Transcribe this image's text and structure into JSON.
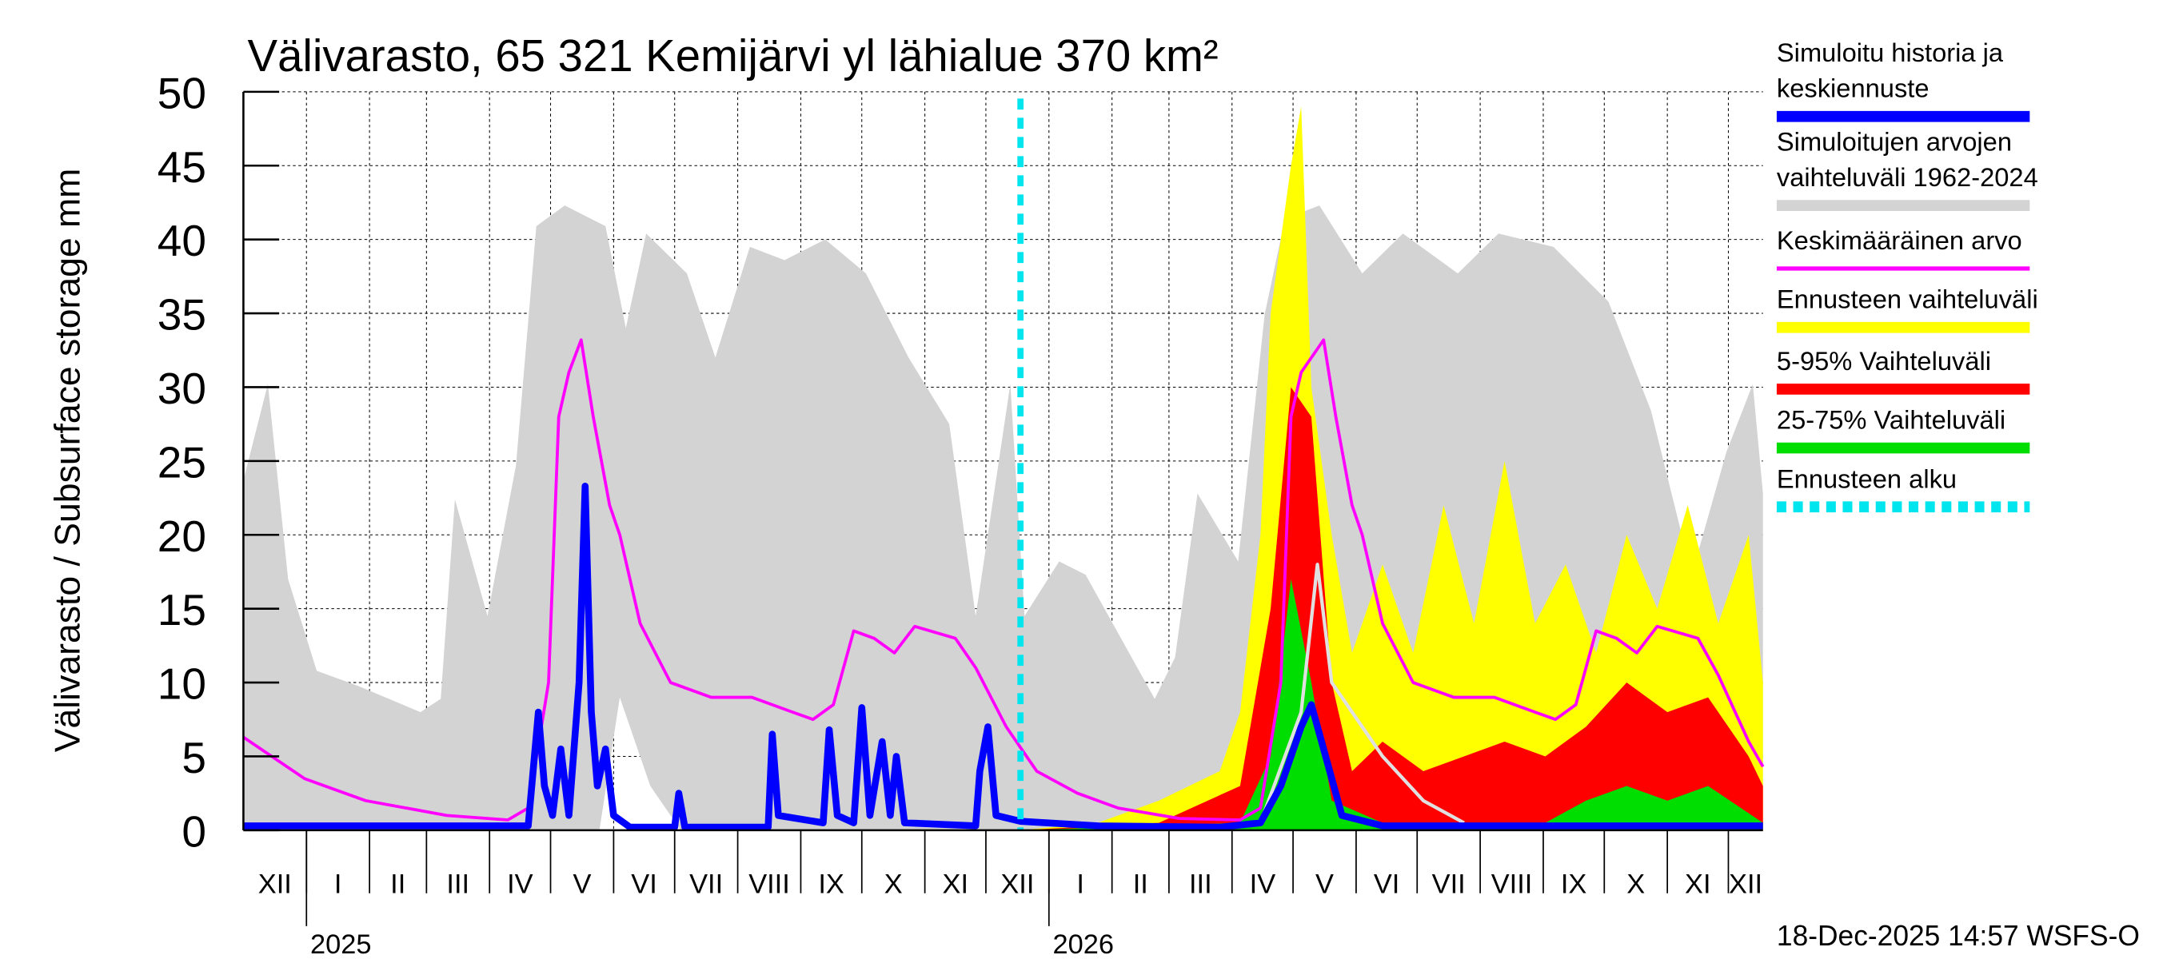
{
  "chart_data": {
    "type": "area",
    "title": "Välivarasto, 65 321 Kemijärvi yl lähialue 370 km²",
    "ylabel": "Välivarasto / Subsurface storage  mm",
    "xlabel": "",
    "ylim": [
      0,
      50
    ],
    "yticks": [
      "0",
      "5",
      "10",
      "15",
      "20",
      "25",
      "30",
      "35",
      "40",
      "45",
      "50"
    ],
    "x_unit": "days since 2024-12-01",
    "xlim": [
      0,
      747
    ],
    "month_labels": [
      "XII",
      "I",
      "II",
      "III",
      "IV",
      "V",
      "VI",
      "VII",
      "VIII",
      "IX",
      "X",
      "XI",
      "XII",
      "I",
      "II",
      "III",
      "IV",
      "V",
      "VI",
      "VII",
      "VIII",
      "IX",
      "X",
      "XI",
      "XII"
    ],
    "year_labels": [
      "2025",
      "2026"
    ],
    "forecast_start_day": 382,
    "grid": true,
    "legend_position": "right",
    "footer": "18-Dec-2025 14:57 WSFS-O",
    "series": [
      {
        "name": "Simuloitujen arvojen vaihteluväli 1962-2024",
        "kind": "band",
        "color": "#d3d3d3",
        "upper": [
          [
            0,
            23.7
          ],
          [
            12,
            30.2
          ],
          [
            22,
            17
          ],
          [
            36,
            10.8
          ],
          [
            56,
            9.8
          ],
          [
            87,
            8
          ],
          [
            97,
            8.9
          ],
          [
            104,
            22.4
          ],
          [
            120,
            14.5
          ],
          [
            134,
            24.7
          ],
          [
            144,
            40.9
          ],
          [
            158,
            42.3
          ],
          [
            178,
            40.9
          ],
          [
            188,
            34
          ],
          [
            198,
            40.4
          ],
          [
            218,
            37.7
          ],
          [
            232,
            32
          ],
          [
            249,
            39.5
          ],
          [
            266,
            38.6
          ],
          [
            286,
            40
          ],
          [
            306,
            37.7
          ],
          [
            327,
            32
          ],
          [
            347,
            27.5
          ],
          [
            360,
            14.5
          ],
          [
            377,
            30.2
          ],
          [
            384,
            14.5
          ],
          [
            401,
            18.2
          ],
          [
            414,
            17.3
          ],
          [
            448,
            8.9
          ],
          [
            458,
            11.7
          ],
          [
            469,
            22.8
          ],
          [
            489,
            18.2
          ],
          [
            502,
            34.9
          ],
          [
            512,
            41.4
          ],
          [
            529,
            42.3
          ],
          [
            550,
            37.7
          ],
          [
            570,
            40.4
          ],
          [
            597,
            37.7
          ],
          [
            617,
            40.4
          ],
          [
            644,
            39.5
          ],
          [
            671,
            35.8
          ],
          [
            692,
            28.4
          ],
          [
            712,
            17.3
          ],
          [
            729,
            25.6
          ],
          [
            742,
            30.2
          ],
          [
            747,
            22.8
          ]
        ],
        "lower": [
          [
            0,
            0
          ],
          [
            175,
            0
          ],
          [
            185,
            9
          ],
          [
            200,
            3
          ],
          [
            215,
            0
          ],
          [
            540,
            0
          ],
          [
            550,
            9
          ],
          [
            565,
            3
          ],
          [
            580,
            0
          ],
          [
            747,
            0
          ]
        ]
      },
      {
        "name": "Ennusteen vaihteluväli",
        "kind": "area",
        "color": "#ffff00",
        "values": [
          [
            382,
            0
          ],
          [
            420,
            0.5
          ],
          [
            450,
            2
          ],
          [
            480,
            4
          ],
          [
            490,
            8
          ],
          [
            500,
            20
          ],
          [
            505,
            35
          ],
          [
            510,
            40
          ],
          [
            515,
            45
          ],
          [
            520,
            49
          ],
          [
            525,
            30
          ],
          [
            535,
            20
          ],
          [
            545,
            12
          ],
          [
            560,
            18
          ],
          [
            575,
            12
          ],
          [
            590,
            22
          ],
          [
            605,
            14
          ],
          [
            620,
            25
          ],
          [
            635,
            14
          ],
          [
            650,
            18
          ],
          [
            665,
            12
          ],
          [
            680,
            20
          ],
          [
            695,
            15
          ],
          [
            710,
            22
          ],
          [
            725,
            14
          ],
          [
            740,
            20
          ],
          [
            747,
            10
          ]
        ]
      },
      {
        "name": "5-95% Vaihteluväli",
        "kind": "area",
        "color": "#ff0000",
        "values": [
          [
            382,
            0
          ],
          [
            450,
            0.5
          ],
          [
            490,
            3
          ],
          [
            505,
            15
          ],
          [
            515,
            30
          ],
          [
            525,
            28
          ],
          [
            535,
            10
          ],
          [
            545,
            4
          ],
          [
            560,
            6
          ],
          [
            580,
            4
          ],
          [
            600,
            5
          ],
          [
            620,
            6
          ],
          [
            640,
            5
          ],
          [
            660,
            7
          ],
          [
            680,
            10
          ],
          [
            700,
            8
          ],
          [
            720,
            9
          ],
          [
            740,
            5
          ],
          [
            747,
            3
          ]
        ]
      },
      {
        "name": "25-75% Vaihteluväli",
        "kind": "area",
        "color": "#00dd00",
        "values": [
          [
            382,
            0
          ],
          [
            490,
            0.5
          ],
          [
            505,
            5
          ],
          [
            515,
            17
          ],
          [
            525,
            10
          ],
          [
            535,
            2
          ],
          [
            560,
            0.5
          ],
          [
            640,
            0.5
          ],
          [
            660,
            2
          ],
          [
            680,
            3
          ],
          [
            700,
            2
          ],
          [
            720,
            3
          ],
          [
            747,
            0.5
          ]
        ]
      },
      {
        "name": "Forecast reference",
        "kind": "line",
        "color": "#e0e0e0",
        "values": [
          [
            500,
            0.5
          ],
          [
            520,
            8
          ],
          [
            528,
            18
          ],
          [
            535,
            10
          ],
          [
            560,
            5
          ],
          [
            580,
            2
          ],
          [
            600,
            0.5
          ]
        ]
      },
      {
        "name": "Keskimääräinen arvo",
        "kind": "line",
        "color": "#ff00ff",
        "values": [
          [
            0,
            6.3
          ],
          [
            30,
            3.5
          ],
          [
            60,
            2
          ],
          [
            100,
            1
          ],
          [
            130,
            0.7
          ],
          [
            140,
            1.5
          ],
          [
            150,
            10
          ],
          [
            155,
            28
          ],
          [
            160,
            31
          ],
          [
            166,
            33.2
          ],
          [
            172,
            28
          ],
          [
            180,
            22
          ],
          [
            185,
            20
          ],
          [
            195,
            14
          ],
          [
            210,
            10
          ],
          [
            230,
            9
          ],
          [
            250,
            9
          ],
          [
            270,
            8
          ],
          [
            280,
            7.5
          ],
          [
            290,
            8.5
          ],
          [
            300,
            13.5
          ],
          [
            310,
            13
          ],
          [
            320,
            12
          ],
          [
            330,
            13.8
          ],
          [
            350,
            13
          ],
          [
            360,
            11
          ],
          [
            375,
            7
          ],
          [
            390,
            4
          ],
          [
            410,
            2.5
          ],
          [
            430,
            1.5
          ],
          [
            460,
            0.8
          ],
          [
            490,
            0.7
          ],
          [
            500,
            1.5
          ],
          [
            510,
            10
          ],
          [
            515,
            28
          ],
          [
            520,
            31
          ],
          [
            531,
            33.2
          ],
          [
            537,
            28
          ],
          [
            545,
            22
          ],
          [
            550,
            20
          ],
          [
            560,
            14
          ],
          [
            575,
            10
          ],
          [
            595,
            9
          ],
          [
            615,
            9
          ],
          [
            635,
            8
          ],
          [
            645,
            7.5
          ],
          [
            655,
            8.5
          ],
          [
            665,
            13.5
          ],
          [
            675,
            13
          ],
          [
            685,
            12
          ],
          [
            695,
            13.8
          ],
          [
            715,
            13
          ],
          [
            725,
            10.5
          ],
          [
            740,
            6
          ],
          [
            747,
            4.3
          ]
        ]
      },
      {
        "name": "Simuloitu historia ja keskiennuste",
        "kind": "line",
        "color": "#0000ff",
        "values": [
          [
            0,
            0.3
          ],
          [
            140,
            0.3
          ],
          [
            145,
            8
          ],
          [
            148,
            3
          ],
          [
            152,
            1
          ],
          [
            156,
            5.5
          ],
          [
            160,
            1
          ],
          [
            165,
            10
          ],
          [
            168,
            23.3
          ],
          [
            171,
            8
          ],
          [
            174,
            3
          ],
          [
            178,
            5.5
          ],
          [
            182,
            1
          ],
          [
            190,
            0.2
          ],
          [
            212,
            0.2
          ],
          [
            214,
            2.5
          ],
          [
            217,
            0.2
          ],
          [
            258,
            0.2
          ],
          [
            260,
            6.5
          ],
          [
            263,
            1
          ],
          [
            285,
            0.5
          ],
          [
            288,
            6.8
          ],
          [
            292,
            1
          ],
          [
            300,
            0.5
          ],
          [
            304,
            8.3
          ],
          [
            308,
            1
          ],
          [
            314,
            6
          ],
          [
            318,
            1
          ],
          [
            321,
            5
          ],
          [
            325,
            0.5
          ],
          [
            360,
            0.3
          ],
          [
            362,
            4
          ],
          [
            366,
            7
          ],
          [
            370,
            1
          ],
          [
            382,
            0.6
          ],
          [
            420,
            0.3
          ],
          [
            480,
            0.2
          ],
          [
            500,
            0.5
          ],
          [
            510,
            3
          ],
          [
            520,
            7
          ],
          [
            525,
            8.5
          ],
          [
            532,
            5
          ],
          [
            540,
            1
          ],
          [
            560,
            0.3
          ],
          [
            747,
            0.3
          ]
        ]
      }
    ],
    "legend": [
      {
        "label": [
          "Simuloitu historia ja",
          "keskiennuste"
        ],
        "color": "#0000ff",
        "style": "solid"
      },
      {
        "label": [
          "Simuloitujen arvojen",
          "vaihteluväli 1962-2024"
        ],
        "color": "#d3d3d3",
        "style": "solid"
      },
      {
        "label": [
          "Keskimääräinen arvo"
        ],
        "color": "#ff00ff",
        "style": "thin"
      },
      {
        "label": [
          "Ennusteen vaihteluväli"
        ],
        "color": "#ffff00",
        "style": "solid"
      },
      {
        "label": [
          "5-95% Vaihteluväli"
        ],
        "color": "#ff0000",
        "style": "solid"
      },
      {
        "label": [
          "25-75% Vaihteluväli"
        ],
        "color": "#00dd00",
        "style": "solid"
      },
      {
        "label": [
          "Ennusteen alku"
        ],
        "color": "#00e5ee",
        "style": "dashed"
      }
    ]
  }
}
